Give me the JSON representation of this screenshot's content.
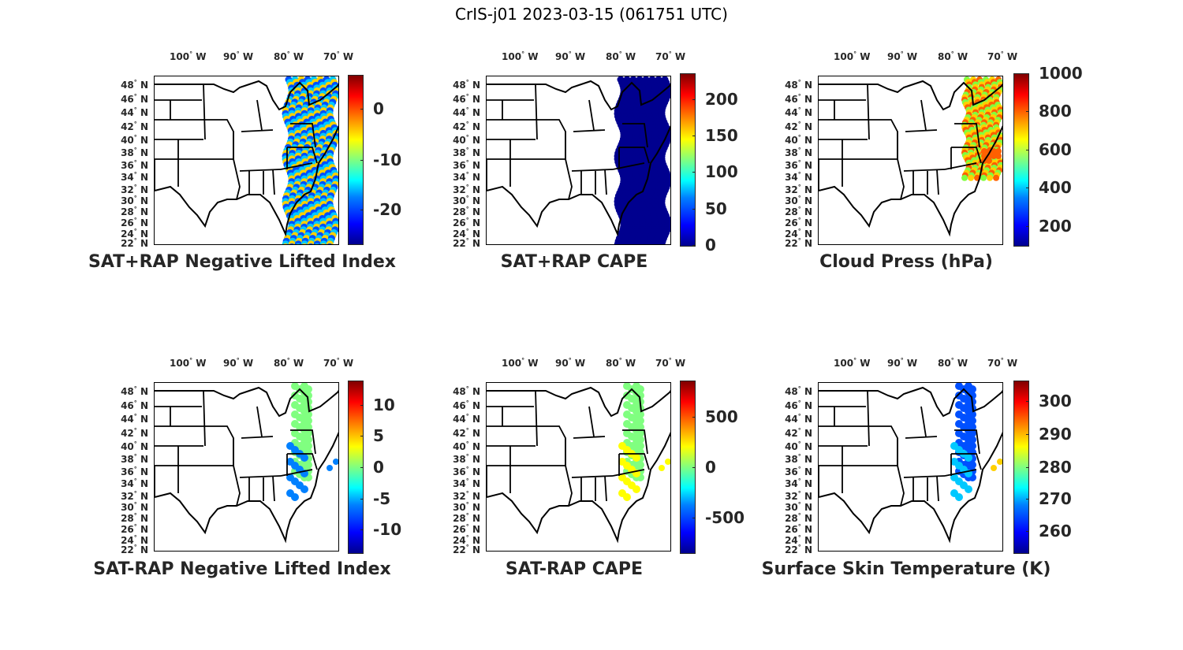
{
  "figure": {
    "title": "CrIS-j01 2023-03-15 (061751 UTC)"
  },
  "axes": {
    "lon_ticks": [
      "100",
      "90",
      "80",
      "70"
    ],
    "lon_suffix": "W",
    "lat_ticks": [
      "48",
      "46",
      "44",
      "42",
      "40",
      "38",
      "36",
      "34",
      "32",
      "30",
      "28",
      "26",
      "24",
      "22"
    ],
    "lat_suffix": "N",
    "degree_symbol": "°"
  },
  "panels": [
    {
      "title": "SAT+RAP Negative Lifted Index",
      "colorbar_ticks": [
        "0",
        "-10",
        "-20"
      ],
      "data_swath": "east-coast-wide",
      "dominant_colors": [
        "#0050ff",
        "#00c8ff",
        "#ffd000"
      ]
    },
    {
      "title": "SAT+RAP CAPE",
      "colorbar_ticks": [
        "200",
        "150",
        "100",
        "50",
        "0"
      ],
      "data_swath": "east-coast-wide",
      "dominant_colors": [
        "#00008f"
      ]
    },
    {
      "title": "Cloud Press (hPa)",
      "colorbar_ticks": [
        "1000",
        "800",
        "600",
        "400",
        "200"
      ],
      "data_swath": "east-coast-clouds",
      "dominant_colors": [
        "#80ff40",
        "#ffd000",
        "#ff6000"
      ]
    },
    {
      "title": "SAT-RAP Negative Lifted Index",
      "colorbar_ticks": [
        "10",
        "5",
        "0",
        "-5",
        "-10"
      ],
      "data_swath": "east-coast-narrow",
      "dominant_colors": [
        "#80ff80",
        "#0080ff"
      ]
    },
    {
      "title": "SAT-RAP CAPE",
      "colorbar_ticks": [
        "500",
        "0",
        "-500"
      ],
      "data_swath": "east-coast-narrow",
      "dominant_colors": [
        "#80ff80",
        "#ffff00"
      ]
    },
    {
      "title": "Surface Skin Temperature (K)",
      "colorbar_ticks": [
        "300",
        "290",
        "280",
        "270",
        "260"
      ],
      "data_swath": "east-coast-narrow",
      "dominant_colors": [
        "#0050ff",
        "#00c8ff",
        "#ffd000"
      ]
    }
  ]
}
